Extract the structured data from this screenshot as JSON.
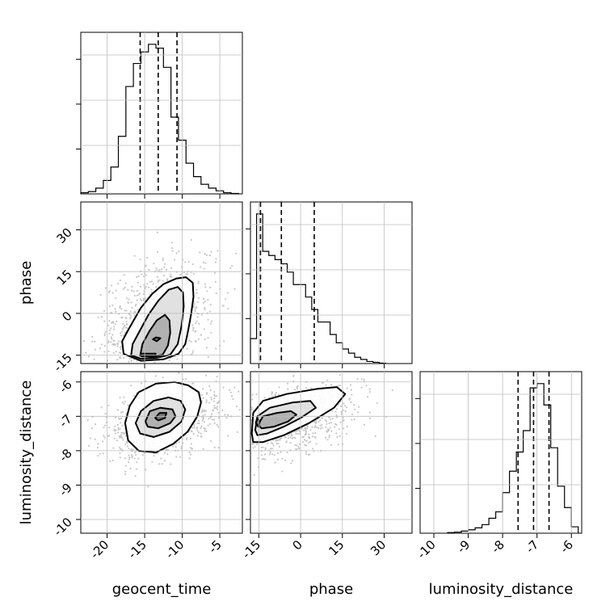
{
  "chart_data": {
    "type": "corner",
    "parameters": [
      "geocent_time",
      "phase",
      "luminosity_distance"
    ],
    "grid": true,
    "ranges": {
      "geocent_time": [
        -23.5,
        -2.0
      ],
      "phase": [
        -18,
        40
      ],
      "luminosity_distance": [
        -10.4,
        -5.7
      ]
    },
    "ticks": {
      "geocent_time": [
        "-20",
        "-15",
        "-10",
        "-5"
      ],
      "phase": [
        "-15",
        "0",
        "15",
        "30"
      ],
      "luminosity_distance": [
        "-10",
        "-9",
        "-8",
        "-7",
        "-6"
      ]
    },
    "tick_values": {
      "geocent_time": [
        -20,
        -15,
        -10,
        -5
      ],
      "phase": [
        -15,
        0,
        15,
        30
      ],
      "luminosity_distance": [
        -10,
        -9,
        -8,
        -7,
        -6
      ]
    },
    "histograms": {
      "geocent_time": {
        "bin_edges": [
          -23.5,
          -22.5,
          -21.5,
          -20.5,
          -19.5,
          -18.5,
          -17.5,
          -16.5,
          -15.5,
          -14.5,
          -13.5,
          -12.5,
          -11.5,
          -10.5,
          -9.5,
          -8.5,
          -7.5,
          -6.5,
          -5.5,
          -4.5,
          -3.5,
          -2.5
        ],
        "counts": [
          0.3,
          0.6,
          1.5,
          3.5,
          7,
          15,
          28,
          34,
          37,
          39,
          38,
          33,
          20,
          14,
          8,
          4.5,
          2.5,
          1.5,
          0.8,
          0.3,
          0.1
        ],
        "quantiles": [
          -15.6,
          -13.2,
          -10.7
        ]
      },
      "phase": {
        "bin_edges": [
          -18,
          -15.8,
          -13.6,
          -11.4,
          -9.2,
          -7,
          -4.8,
          -2.6,
          -0.4,
          1.8,
          4,
          6.2,
          8.4,
          10.6,
          12.8,
          15,
          17.2,
          19.4,
          21.6,
          23.8,
          26,
          28.2,
          30.4
        ],
        "counts": [
          6,
          36,
          27,
          26,
          25,
          24,
          22,
          19,
          19,
          16,
          13,
          10,
          10,
          7,
          5,
          3.5,
          2.5,
          1.5,
          1,
          0.5,
          0.3,
          0.1
        ],
        "quantiles": [
          -14.4,
          -6.9,
          4.9
        ]
      },
      "luminosity_distance": {
        "bin_edges": [
          -9.6,
          -9.4,
          -9.2,
          -9.0,
          -8.8,
          -8.6,
          -8.4,
          -8.2,
          -8.0,
          -7.8,
          -7.6,
          -7.4,
          -7.2,
          -7.0,
          -6.8,
          -6.6,
          -6.4,
          -6.2,
          -6.0,
          -5.8
        ],
        "counts": [
          0.3,
          0.5,
          1,
          1.6,
          2.5,
          4,
          7,
          10,
          19,
          29,
          38,
          48,
          68,
          70,
          60,
          40,
          22,
          12,
          3
        ],
        "quantiles": [
          -7.55,
          -7.1,
          -6.65
        ]
      }
    },
    "joint": [
      {
        "x": "geocent_time",
        "y": "phase",
        "center": [
          -13.5,
          -4
        ],
        "spread": [
          3.4,
          10
        ],
        "correlation": 0.35,
        "contours": [
          [
            [
              -17.8,
              -14.5
            ],
            [
              -18.0,
              -10
            ],
            [
              -17.0,
              -5
            ],
            [
              -15.5,
              2
            ],
            [
              -14.0,
              7
            ],
            [
              -12.5,
              10.5
            ],
            [
              -10.8,
              12.5
            ],
            [
              -9.5,
              13
            ],
            [
              -8.6,
              11
            ],
            [
              -8.5,
              6
            ],
            [
              -8.8,
              0
            ],
            [
              -9.2,
              -6
            ],
            [
              -9.6,
              -11
            ],
            [
              -10.5,
              -14.5
            ],
            [
              -12.5,
              -16.5
            ],
            [
              -15.5,
              -17
            ]
          ],
          [
            [
              -16.8,
              -15
            ],
            [
              -16.6,
              -11
            ],
            [
              -15.6,
              -6
            ],
            [
              -14.5,
              -0.5
            ],
            [
              -13.2,
              4.5
            ],
            [
              -11.8,
              8.5
            ],
            [
              -10.6,
              9.5
            ],
            [
              -9.9,
              7.5
            ],
            [
              -9.8,
              2.5
            ],
            [
              -10.1,
              -4.5
            ],
            [
              -10.6,
              -11
            ],
            [
              -11.6,
              -14.8
            ],
            [
              -13.5,
              -16
            ],
            [
              -15.5,
              -16.3
            ]
          ],
          [
            [
              -15.6,
              -15.2
            ],
            [
              -15.3,
              -11
            ],
            [
              -14.4,
              -6.5
            ],
            [
              -13.4,
              -2.5
            ],
            [
              -12.3,
              -0.5
            ],
            [
              -11.7,
              -2.5
            ],
            [
              -11.6,
              -7
            ],
            [
              -11.9,
              -11.5
            ],
            [
              -12.6,
              -14.8
            ],
            [
              -14.0,
              -15.6
            ]
          ],
          [
            [
              -13.9,
              -9.3
            ],
            [
              -13.5,
              -8.6
            ],
            [
              -12.9,
              -8.9
            ],
            [
              -13.4,
              -10.0
            ]
          ],
          [
            [
              -15.4,
              -15.6
            ],
            [
              -15.4,
              -14.3
            ],
            [
              -13.5,
              -14.3
            ],
            [
              -13.5,
              -15.6
            ]
          ]
        ]
      },
      {
        "x": "geocent_time",
        "y": "luminosity_distance",
        "center": [
          -12.8,
          -7.2
        ],
        "spread": [
          3.4,
          0.45
        ],
        "correlation": 0.4,
        "contours": [
          [
            [
              -17.6,
              -7.2
            ],
            [
              -17.0,
              -6.7
            ],
            [
              -15.8,
              -6.3
            ],
            [
              -13.5,
              -6.05
            ],
            [
              -11.0,
              -6.0
            ],
            [
              -9.2,
              -6.1
            ],
            [
              -7.8,
              -6.3
            ],
            [
              -7.5,
              -6.6
            ],
            [
              -8.0,
              -7.0
            ],
            [
              -9.3,
              -7.45
            ],
            [
              -11.2,
              -7.8
            ],
            [
              -13.5,
              -8.05
            ],
            [
              -15.8,
              -8.0
            ],
            [
              -17.2,
              -7.7
            ]
          ],
          [
            [
              -16.2,
              -7.2
            ],
            [
              -15.5,
              -6.85
            ],
            [
              -13.8,
              -6.55
            ],
            [
              -11.8,
              -6.45
            ],
            [
              -10.2,
              -6.55
            ],
            [
              -9.6,
              -6.8
            ],
            [
              -10.1,
              -7.15
            ],
            [
              -11.7,
              -7.45
            ],
            [
              -13.8,
              -7.6
            ],
            [
              -15.6,
              -7.5
            ]
          ],
          [
            [
              -14.9,
              -7.15
            ],
            [
              -14.3,
              -6.85
            ],
            [
              -12.9,
              -6.75
            ],
            [
              -11.3,
              -6.8
            ],
            [
              -10.9,
              -7.0
            ],
            [
              -11.6,
              -7.2
            ],
            [
              -13.2,
              -7.35
            ],
            [
              -14.6,
              -7.3
            ]
          ],
          [
            [
              -13.6,
              -7.05
            ],
            [
              -13.0,
              -6.9
            ],
            [
              -12.1,
              -6.9
            ],
            [
              -12.3,
              -7.05
            ],
            [
              -13.2,
              -7.12
            ]
          ]
        ]
      },
      {
        "x": "phase",
        "y": "luminosity_distance",
        "center": [
          -4,
          -7.1
        ],
        "spread": [
          10,
          0.45
        ],
        "correlation": 0.45,
        "contours": [
          [
            [
              -17.5,
              -7.5
            ],
            [
              -17.0,
              -6.9
            ],
            [
              -13.5,
              -6.55
            ],
            [
              -5.0,
              -6.35
            ],
            [
              6.0,
              -6.2
            ],
            [
              13.0,
              -6.15
            ],
            [
              16.0,
              -6.35
            ],
            [
              12.0,
              -6.75
            ],
            [
              3.0,
              -7.2
            ],
            [
              -6.0,
              -7.55
            ],
            [
              -13.5,
              -7.75
            ],
            [
              -17.0,
              -7.75
            ]
          ],
          [
            [
              -16.3,
              -7.4
            ],
            [
              -15.5,
              -7.0
            ],
            [
              -11.0,
              -6.75
            ],
            [
              -3.0,
              -6.6
            ],
            [
              3.5,
              -6.55
            ],
            [
              5.5,
              -6.75
            ],
            [
              0.0,
              -7.05
            ],
            [
              -6.0,
              -7.3
            ],
            [
              -12.0,
              -7.5
            ],
            [
              -15.5,
              -7.55
            ]
          ],
          [
            [
              -15.3,
              -7.25
            ],
            [
              -13.5,
              -7.0
            ],
            [
              -8.5,
              -6.9
            ],
            [
              -3.5,
              -6.85
            ],
            [
              -1.5,
              -6.95
            ],
            [
              -4.5,
              -7.15
            ],
            [
              -9.5,
              -7.3
            ],
            [
              -14.0,
              -7.35
            ]
          ],
          [
            [
              -16.1,
              -7.2
            ],
            [
              -15.6,
              -7.05
            ],
            [
              -14.6,
              -7.15
            ],
            [
              -15.2,
              -7.3
            ]
          ]
        ]
      }
    ]
  }
}
